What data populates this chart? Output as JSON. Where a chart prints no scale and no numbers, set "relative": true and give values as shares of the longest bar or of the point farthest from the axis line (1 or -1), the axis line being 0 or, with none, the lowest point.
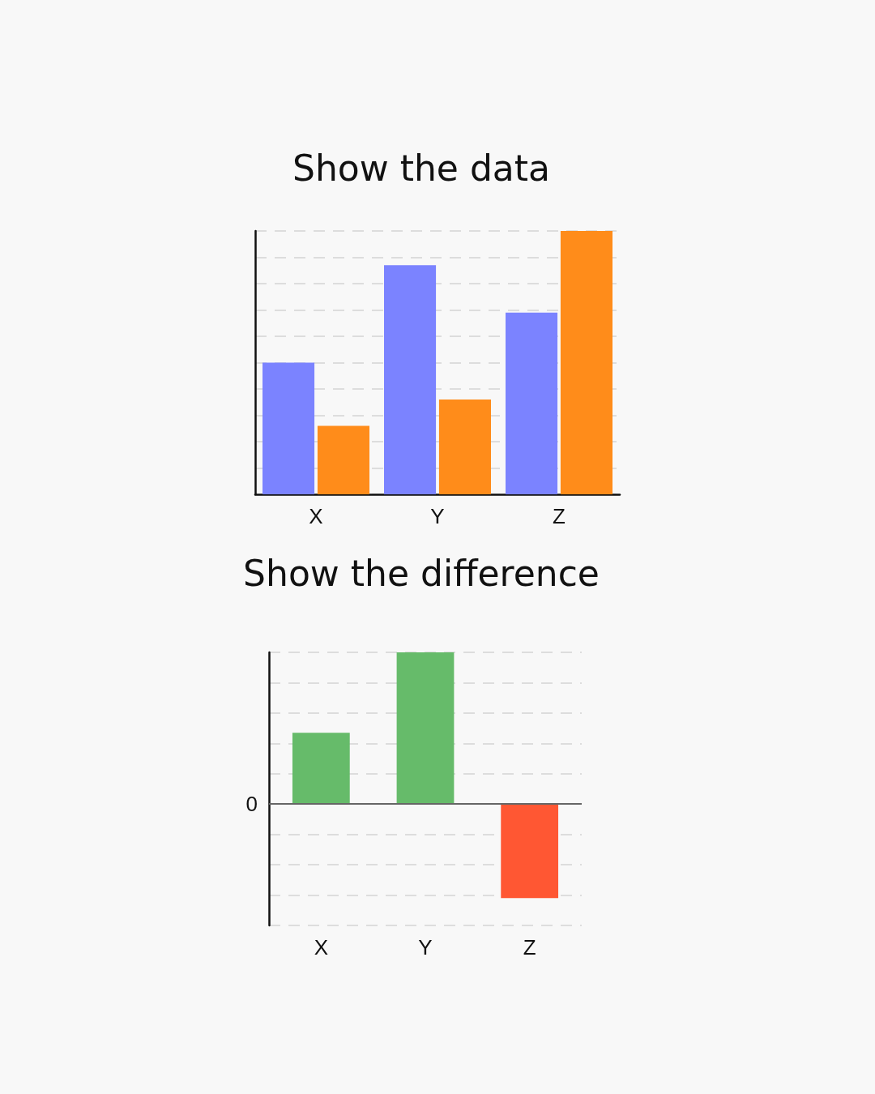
{
  "chart_data": [
    {
      "type": "bar",
      "title": "Show the data",
      "relative": true,
      "grid": "y",
      "categories": [
        "X",
        "Y",
        "Z"
      ],
      "series": [
        {
          "color": "#7b83ff",
          "values": [
            0.5,
            0.87,
            0.69
          ]
        },
        {
          "color": "#ff8c1a",
          "values": [
            0.26,
            0.36,
            1
          ]
        }
      ]
    },
    {
      "type": "bar",
      "title": "Show the difference",
      "relative": true,
      "grid": "y",
      "categories": [
        "X",
        "Y",
        "Z"
      ],
      "values": [
        0.47,
        1,
        -0.62
      ],
      "colors": [
        "#66bb6a",
        "#66bb6a",
        "#ff5733"
      ],
      "ref_lines": [
        {
          "axis": "y",
          "value": 0,
          "label": "0",
          "color": "#666666"
        }
      ]
    }
  ]
}
